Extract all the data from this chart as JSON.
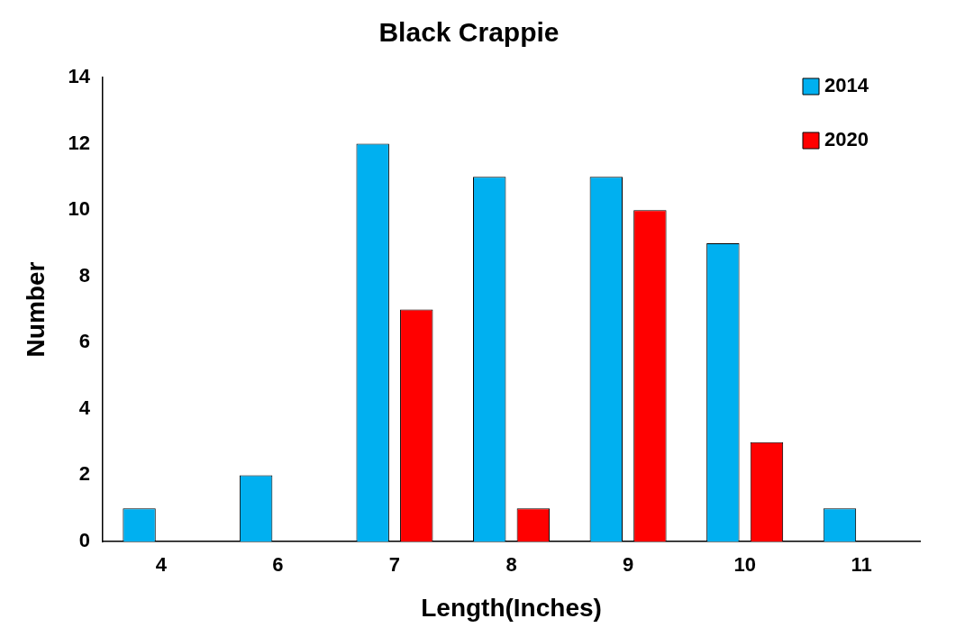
{
  "chart_data": {
    "type": "bar",
    "title": "Black Crappie",
    "xlabel": "Length(Inches)",
    "ylabel": "Number",
    "categories": [
      "4",
      "6",
      "7",
      "8",
      "9",
      "10",
      "11"
    ],
    "series": [
      {
        "name": "2014",
        "color": "#00b0f0",
        "values": [
          1,
          2,
          12,
          11,
          11,
          9,
          1
        ]
      },
      {
        "name": "2020",
        "color": "#ff0000",
        "values": [
          null,
          null,
          7,
          1,
          10,
          3,
          null
        ]
      }
    ],
    "ylim": [
      0,
      14
    ],
    "yticks": [
      0,
      2,
      4,
      6,
      8,
      10,
      12,
      14
    ],
    "grid": false,
    "legend": "top right"
  }
}
